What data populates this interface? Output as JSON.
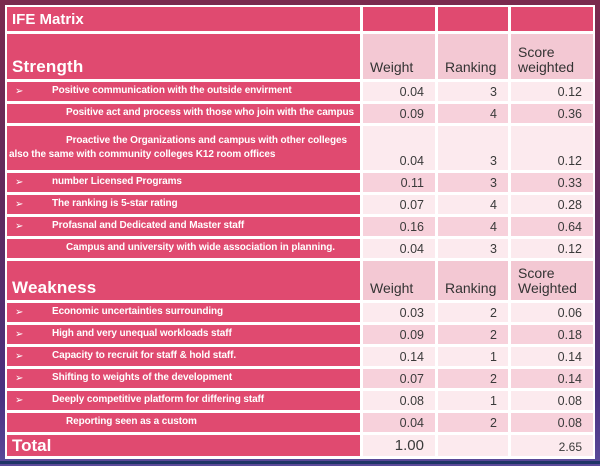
{
  "title": {
    "label": "IFE Matrix"
  },
  "palette": {
    "accent_pink": "#e04a70",
    "band_light": "#fceaee",
    "band_dark": "#f7d1db",
    "header_cell_pink": "#f3c8d3",
    "frame_top": "#7b2a4e",
    "frame_bottom": "#5a4a9a",
    "bottom_line_navy": "#1e3566",
    "text_dark": "#3a3a3a",
    "text_white": "#ffffff"
  },
  "icons": {
    "bullet_arrow": "➢"
  },
  "strength": {
    "header": {
      "title": "Strength",
      "weight": "Weight",
      "ranking": "Ranking",
      "score": "Score weighted"
    },
    "rows": [
      {
        "bullet": "➢",
        "label": "Positive communication with the outside envirment",
        "weight": "0.04",
        "ranking": "3",
        "score": "0.12"
      },
      {
        "bullet": "",
        "label": "Positive act and process  with those who join with the campus",
        "weight": "0.09",
        "ranking": "4",
        "score": "0.36"
      },
      {
        "bullet": "",
        "label": "Proactive the Organizations and campus with other colleges",
        "label2": "also the same with community colleges K12 room offices",
        "weight": "0.04",
        "ranking": "3",
        "score": "0.12"
      },
      {
        "bullet": "➢",
        "label": "number Licensed Programs",
        "weight": "0.11",
        "ranking": "3",
        "score": "0.33"
      },
      {
        "bullet": "➢",
        "label": "The ranking is 5-star rating",
        "weight": "0.07",
        "ranking": "4",
        "score": "0.28"
      },
      {
        "bullet": "➢",
        "label": "Profasnal and Dedicated and Master staff",
        "weight": "0.16",
        "ranking": "4",
        "score": "0.64"
      },
      {
        "bullet": "",
        "label": "Campus and university with wide association in planning.",
        "weight": "0.04",
        "ranking": "3",
        "score": "0.12"
      }
    ]
  },
  "weakness": {
    "header": {
      "title": "Weakness",
      "weight": "Weight",
      "ranking": "Ranking",
      "score": "Score Weighted"
    },
    "rows": [
      {
        "bullet": "➢",
        "label": "Economic uncertainties surrounding",
        "weight": "0.03",
        "ranking": "2",
        "score": "0.06"
      },
      {
        "bullet": "➢",
        "label": "High and very unequal workloads staff",
        "weight": "0.09",
        "ranking": "2",
        "score": "0.18"
      },
      {
        "bullet": "➢",
        "label": "Capacity to recruit for staff & hold staff.",
        "weight": "0.14",
        "ranking": "1",
        "score": "0.14"
      },
      {
        "bullet": "➢",
        "label": "Shifting to weights of the development",
        "weight": "0.07",
        "ranking": "2",
        "score": "0.14"
      },
      {
        "bullet": "➢",
        "label": "Deeply competitive platform for differing staff",
        "weight": "0.08",
        "ranking": "1",
        "score": "0.08"
      },
      {
        "bullet": "",
        "label": "Reporting seen as a custom",
        "weight": "0.04",
        "ranking": "2",
        "score": "0.08"
      }
    ]
  },
  "total": {
    "label": "Total",
    "weight": "1.00",
    "ranking": "",
    "score": "2.65"
  }
}
